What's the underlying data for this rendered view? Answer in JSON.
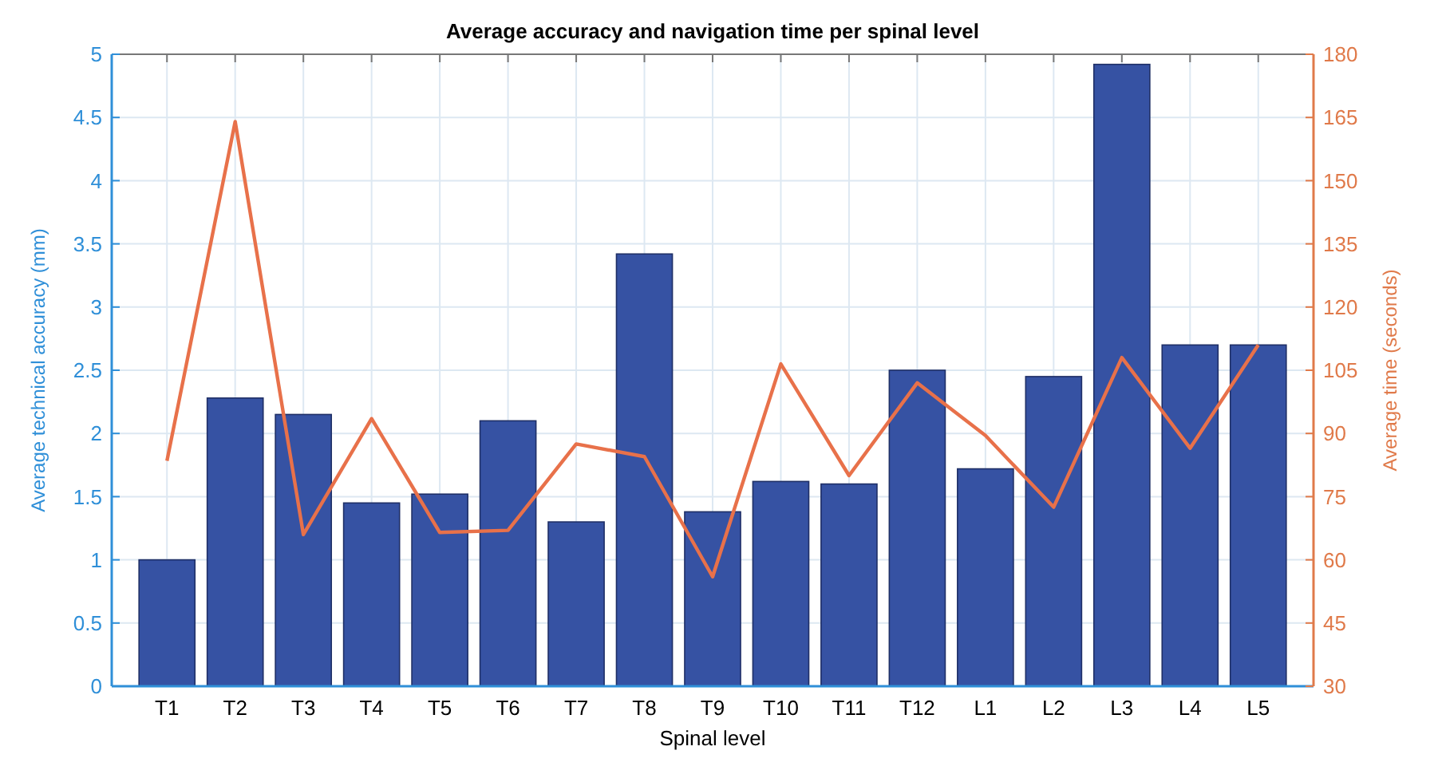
{
  "chart_data": {
    "type": "bar",
    "title": "Average accuracy and navigation time per spinal level",
    "xlabel": "Spinal level",
    "ylabel": "Average technical accuracy (mm)",
    "y2label": "Average time (seconds)",
    "categories": [
      "T1",
      "T2",
      "T3",
      "T4",
      "T5",
      "T6",
      "T7",
      "T8",
      "T9",
      "T10",
      "T11",
      "T12",
      "L1",
      "L2",
      "L3",
      "L4",
      "L5"
    ],
    "series": [
      {
        "color": "#3652a3",
        "values": [
          1.0,
          2.28,
          2.15,
          1.45,
          1.52,
          2.1,
          1.3,
          3.42,
          1.38,
          1.62,
          1.6,
          2.5,
          1.72,
          2.45,
          4.92,
          2.7,
          2.7
        ]
      },
      {
        "type": "line",
        "axis": "y2",
        "color": "#e8714a",
        "values": [
          83.5,
          164,
          66,
          93.5,
          66.5,
          67,
          87.5,
          84.5,
          56,
          106.5,
          80,
          102,
          89.5,
          72.5,
          108,
          86.5,
          111
        ]
      }
    ],
    "ylim": [
      0,
      5
    ],
    "yticks": [
      0,
      0.5,
      1,
      1.5,
      2,
      2.5,
      3,
      3.5,
      4,
      4.5,
      5
    ],
    "y2lim": [
      30,
      180
    ],
    "y2ticks": [
      30,
      45,
      60,
      75,
      90,
      105,
      120,
      135,
      150,
      165,
      180
    ],
    "grid": true,
    "marker": "none",
    "line_style": "solid"
  }
}
